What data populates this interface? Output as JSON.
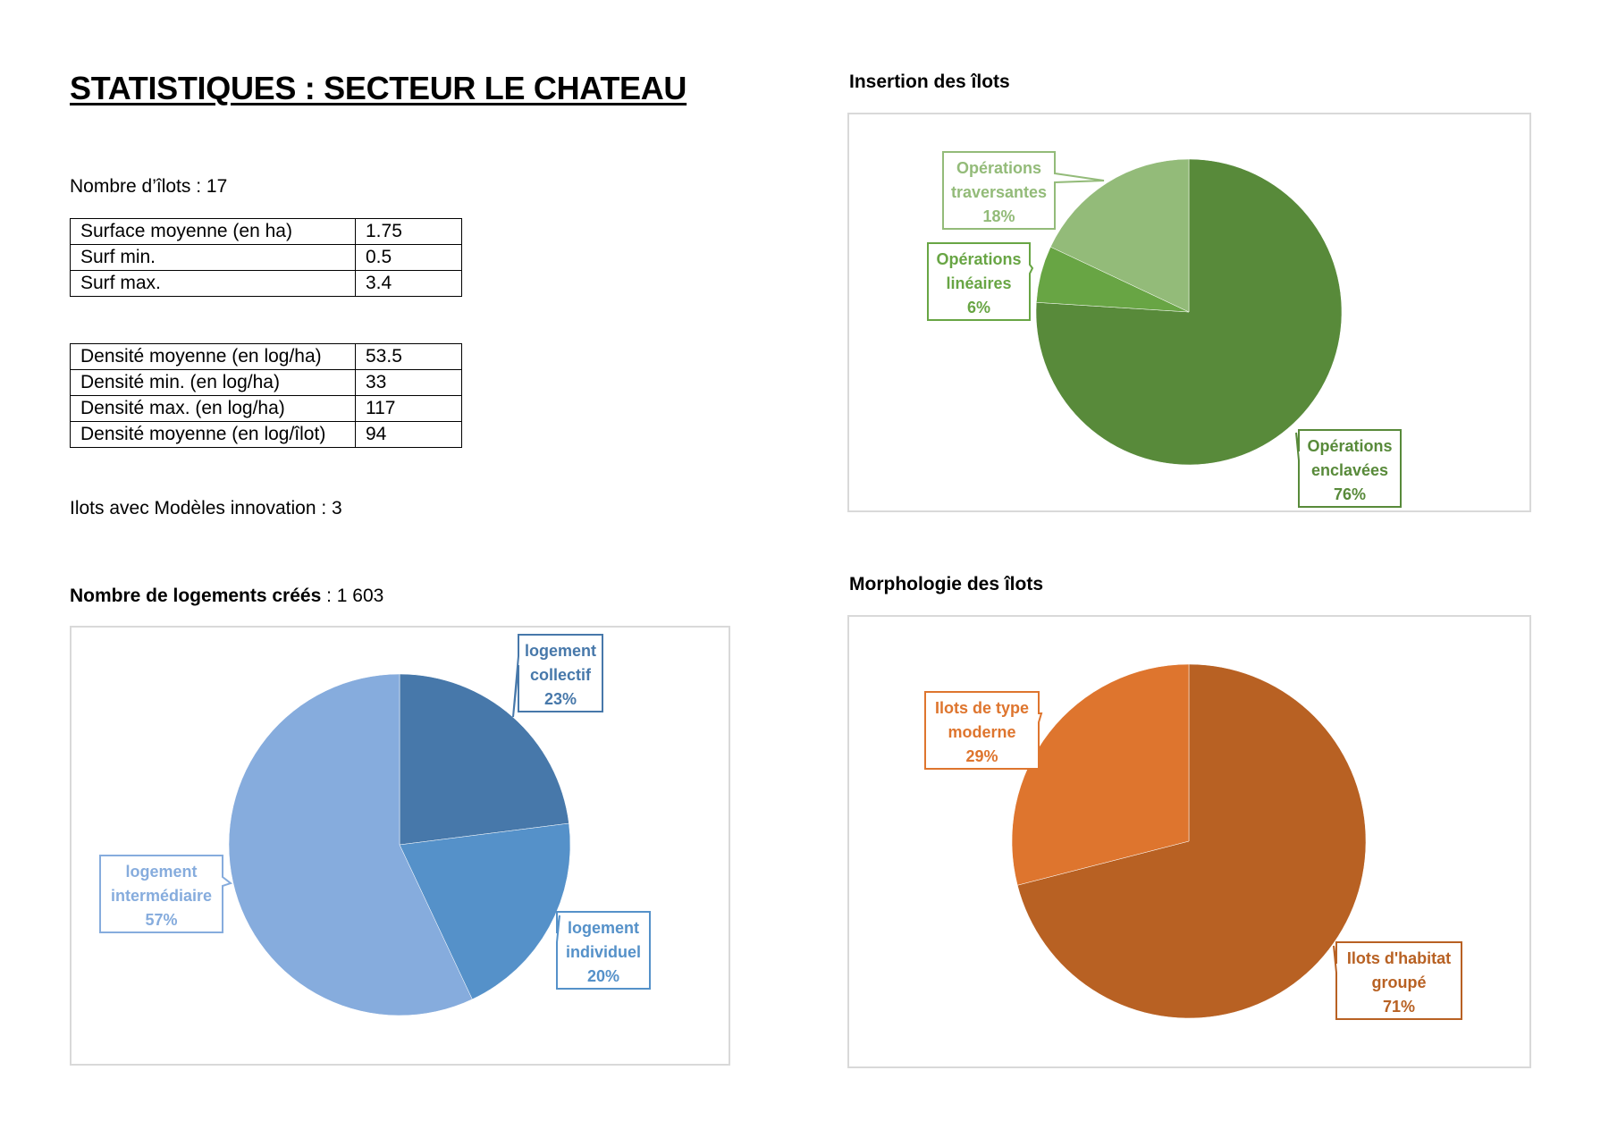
{
  "header": {
    "title": "STATISTIQUES : SECTEUR LE CHATEAU",
    "nb_ilots": "Nombre d’îlots : 17",
    "innovation": "Ilots avec Modèles innovation : 3",
    "logements_label": "Nombre de logements créés",
    "logements_value": " : 1 603"
  },
  "surface_table": [
    {
      "label": "Surface moyenne (en ha)",
      "value": "1.75"
    },
    {
      "label": "Surf min.",
      "value": "0.5"
    },
    {
      "label": "Surf max.",
      "value": "3.4"
    }
  ],
  "density_table": [
    {
      "label": "Densité moyenne (en log/ha)",
      "value": "53.5"
    },
    {
      "label": "Densité min. (en log/ha)",
      "value": "33"
    },
    {
      "label": "Densité max. (en log/ha)",
      "value": "117"
    },
    {
      "label": "Densité moyenne (en log/îlot)",
      "value": "94"
    }
  ],
  "chart_data": [
    {
      "type": "pie",
      "title": "Nombre de logements créés",
      "series": [
        {
          "name": "logement collectif",
          "lines": [
            "logement",
            "collectif"
          ],
          "value": 23,
          "label": "23%",
          "color": "#4778aa"
        },
        {
          "name": "logement individuel",
          "lines": [
            "logement",
            "individuel"
          ],
          "value": 20,
          "label": "20%",
          "color": "#5591c9"
        },
        {
          "name": "logement intermédiaire",
          "lines": [
            "logement",
            "intermédiaire"
          ],
          "value": 57,
          "label": "57%",
          "color": "#86acdd"
        }
      ]
    },
    {
      "type": "pie",
      "title": "Insertion des îlots",
      "series": [
        {
          "name": "Opérations enclavées",
          "lines": [
            "Opérations",
            "enclavées"
          ],
          "value": 76,
          "label": "76%",
          "color": "#588a3a"
        },
        {
          "name": "Opérations linéaires",
          "lines": [
            "Opérations",
            "linéaires"
          ],
          "value": 6,
          "label": "6%",
          "color": "#68a544"
        },
        {
          "name": "Opérations traversantes",
          "lines": [
            "Opérations",
            "traversantes"
          ],
          "value": 18,
          "label": "18%",
          "color": "#93bb79"
        }
      ]
    },
    {
      "type": "pie",
      "title": "Morphologie des îlots",
      "series": [
        {
          "name": "Ilots d'habitat groupé",
          "lines": [
            "Ilots d'habitat",
            "groupé"
          ],
          "value": 71,
          "label": "71%",
          "color": "#b86123"
        },
        {
          "name": "Ilots de type moderne",
          "lines": [
            "Ilots de type",
            "moderne"
          ],
          "value": 29,
          "label": "29%",
          "color": "#de752e"
        }
      ]
    }
  ]
}
